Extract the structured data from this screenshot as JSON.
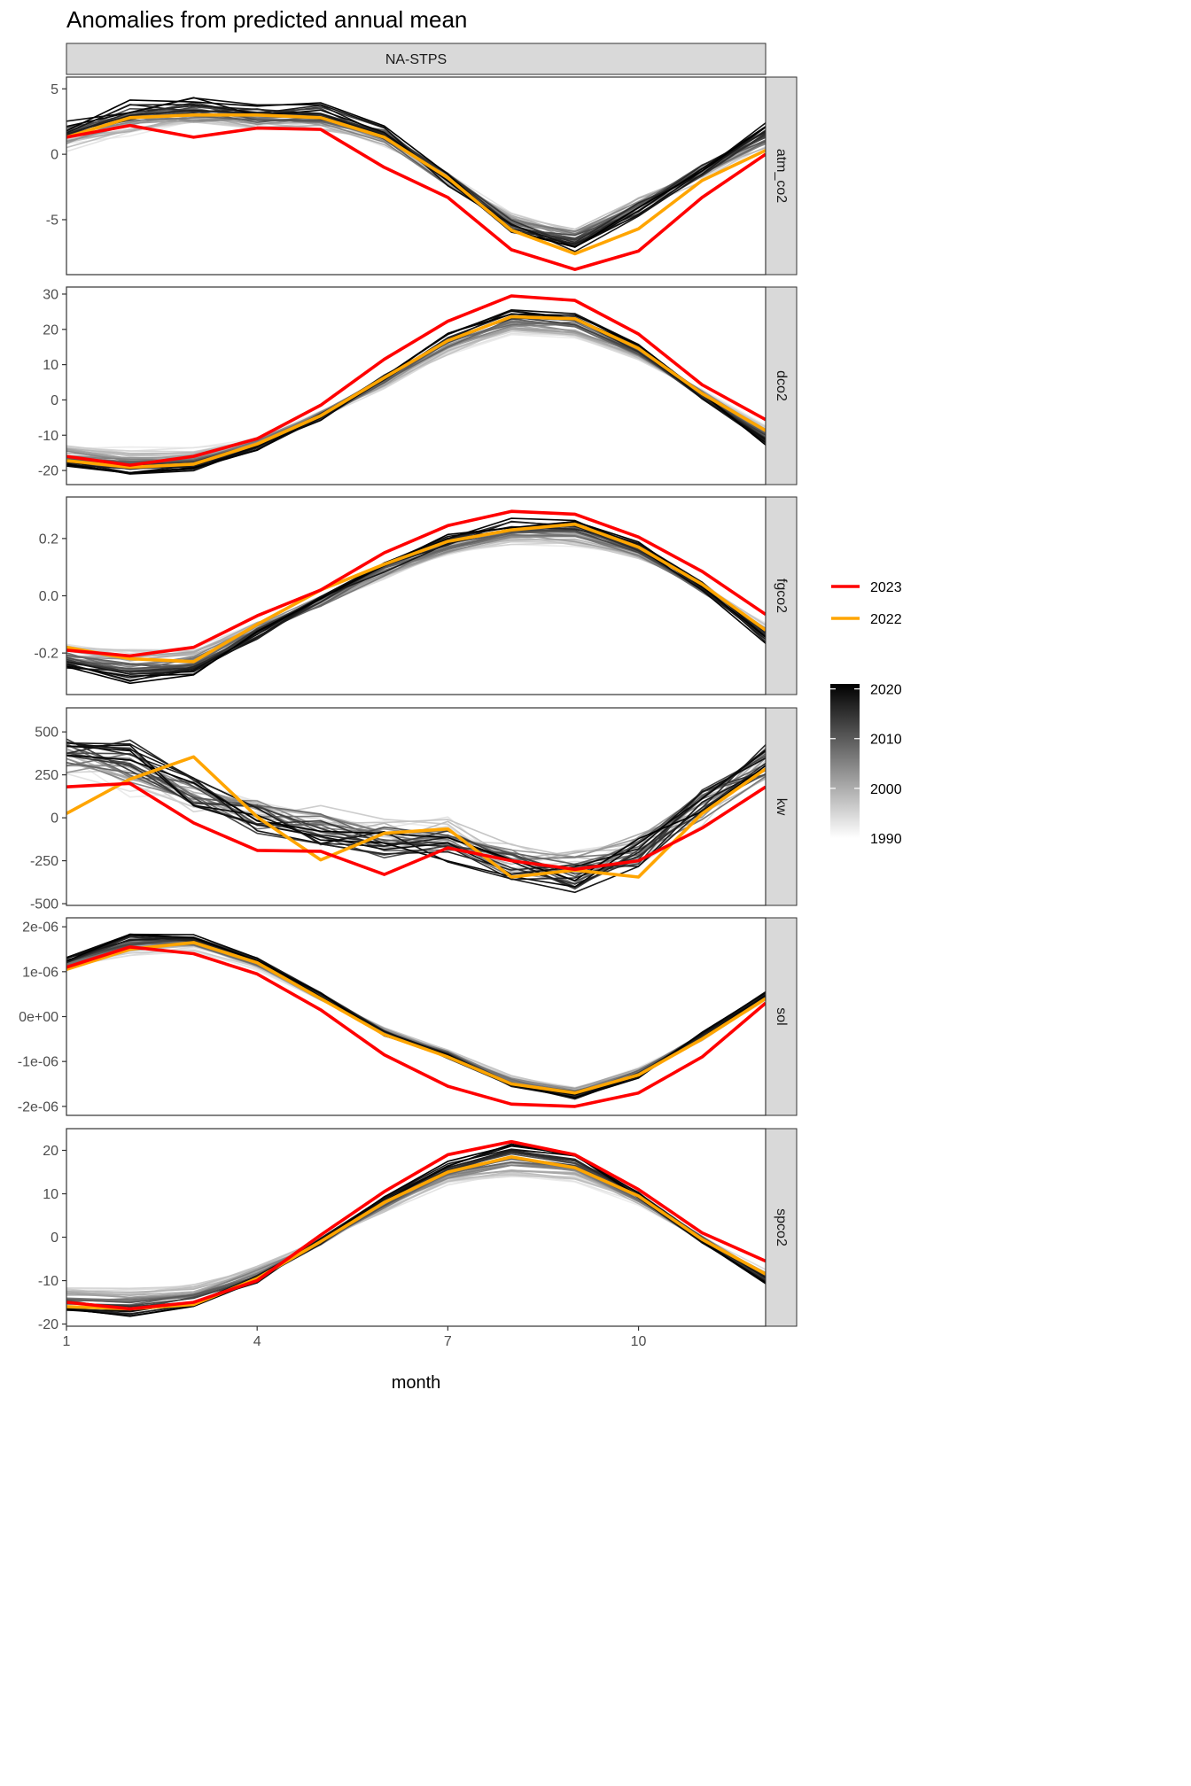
{
  "chart_data": {
    "type": "line",
    "title": "Anomalies from predicted annual mean",
    "strip": "NA-STPS",
    "xlabel": "month",
    "x": [
      1,
      2,
      3,
      4,
      5,
      6,
      7,
      8,
      9,
      10,
      11,
      12
    ],
    "x_ticks": [
      1,
      4,
      7,
      10
    ],
    "x_tick_labels": [
      "1",
      "4",
      "7",
      "10"
    ],
    "xlim": [
      1,
      12
    ],
    "legend": {
      "placement": "right",
      "highlight": [
        {
          "name": "2023",
          "color": "#ff0000"
        },
        {
          "name": "2022",
          "color": "#ffa500"
        }
      ],
      "colorbar": {
        "range": [
          1990,
          2021
        ],
        "ticks": [
          1990,
          2000,
          2010,
          2020
        ],
        "tick_labels": [
          "1990",
          "2000",
          "2010",
          "2020"
        ],
        "low_color": "#ffffff",
        "high_color": "#000000"
      }
    },
    "panels": [
      {
        "label": "atm_co2",
        "ylim": [
          -9.2,
          5.9
        ],
        "yticks": [
          -5,
          0,
          5
        ],
        "ytick_labels": [
          "-5",
          "0",
          "5"
        ],
        "years_range": [
          1990,
          2021
        ],
        "years_base": [
          1.2,
          3.0,
          3.0,
          3.0,
          2.8,
          1.3,
          -1.8,
          -5.3,
          -6.6,
          -4.8,
          -1.8,
          0.9
        ],
        "years_first_offset": [
          -0.6,
          -1.3,
          -0.7,
          -0.8,
          -0.7,
          -0.3,
          0.0,
          0.4,
          0.9,
          1.1,
          0.1,
          -0.2
        ],
        "years_last_offset": [
          1.0,
          0.7,
          1.0,
          0.4,
          0.7,
          0.4,
          -0.2,
          -0.4,
          -0.5,
          0.5,
          0.8,
          1.1
        ],
        "years_noise": 0.5,
        "series": [
          {
            "name": "2023",
            "values": [
              1.3,
              2.2,
              1.3,
              2.0,
              1.9,
              -1.0,
              -3.3,
              -7.3,
              -8.8,
              -7.4,
              -3.3,
              0.0
            ]
          },
          {
            "name": "2022",
            "values": [
              1.3,
              2.8,
              3.0,
              3.0,
              2.8,
              1.3,
              -1.8,
              -5.8,
              -7.6,
              -5.7,
              -2.0,
              0.3
            ]
          }
        ]
      },
      {
        "label": "dco2",
        "ylim": [
          -24,
          32
        ],
        "yticks": [
          -20,
          -10,
          0,
          10,
          20,
          30
        ],
        "ytick_labels": [
          "-20",
          "-10",
          "0",
          "10",
          "20",
          "30"
        ],
        "years_range": [
          1990,
          2021
        ],
        "years_base": [
          -17,
          -19,
          -19,
          -13,
          -5,
          6,
          16,
          23,
          22,
          14,
          1,
          -10
        ],
        "years_first_offset": [
          4,
          5,
          5,
          2,
          1,
          -2,
          -3,
          -4,
          -4,
          -2,
          1,
          2
        ],
        "years_last_offset": [
          -2,
          -2,
          -1,
          -1,
          0,
          1,
          2,
          2,
          2,
          1,
          0,
          -2
        ],
        "years_noise": 1.0,
        "series": [
          {
            "name": "2023",
            "values": [
              -16,
              -18.5,
              -16,
              -11,
              -1.5,
              11.5,
              22.3,
              29.5,
              28.2,
              18.7,
              4.3,
              -5.6
            ]
          },
          {
            "name": "2022",
            "values": [
              -17.2,
              -19.1,
              -18.2,
              -12.5,
              -4.5,
              6.3,
              16.8,
              23.6,
              23.0,
              14.6,
              1.8,
              -8.7
            ]
          }
        ]
      },
      {
        "label": "fgco2",
        "ylim": [
          -0.345,
          0.345
        ],
        "yticks": [
          -0.2,
          0.0,
          0.2
        ],
        "ytick_labels": [
          "-0.2",
          "0.0",
          "0.2"
        ],
        "years_range": [
          1990,
          2021
        ],
        "years_base": [
          -0.22,
          -0.25,
          -0.24,
          -0.12,
          -0.02,
          0.09,
          0.18,
          0.225,
          0.23,
          0.165,
          0.03,
          -0.13
        ],
        "years_first_offset": [
          0.04,
          0.06,
          0.05,
          0.02,
          0.0,
          -0.02,
          -0.03,
          -0.04,
          -0.05,
          -0.03,
          0.0,
          0.02
        ],
        "years_last_offset": [
          -0.03,
          -0.05,
          -0.03,
          -0.02,
          0.0,
          0.01,
          0.02,
          0.03,
          0.03,
          0.01,
          0.0,
          -0.02
        ],
        "years_noise": 0.018,
        "series": [
          {
            "name": "2023",
            "values": [
              -0.19,
              -0.21,
              -0.18,
              -0.07,
              0.02,
              0.15,
              0.245,
              0.295,
              0.285,
              0.205,
              0.085,
              -0.065
            ]
          },
          {
            "name": "2022",
            "values": [
              -0.18,
              -0.22,
              -0.23,
              -0.1,
              0.02,
              0.11,
              0.19,
              0.23,
              0.25,
              0.17,
              0.04,
              -0.12
            ]
          }
        ]
      },
      {
        "label": "kw",
        "ylim": [
          -510,
          640
        ],
        "yticks": [
          -500,
          -250,
          0,
          250,
          500
        ],
        "ytick_labels": [
          "-500",
          "-250",
          "0",
          "250",
          "500"
        ],
        "years_range": [
          1990,
          2021
        ],
        "years_base": [
          300,
          300,
          120,
          -20,
          -80,
          -140,
          -120,
          -250,
          -280,
          -180,
          50,
          300
        ],
        "years_first_offset": [
          0,
          -100,
          0,
          60,
          80,
          60,
          40,
          30,
          20,
          0,
          -20,
          0
        ],
        "years_last_offset": [
          100,
          120,
          40,
          0,
          -40,
          -40,
          -60,
          -60,
          -80,
          -20,
          40,
          60
        ],
        "years_noise": 90,
        "series": [
          {
            "name": "2023",
            "values": [
              180,
              200,
              -30,
              -190,
              -195,
              -330,
              -175,
              -250,
              -300,
              -250,
              -60,
              180
            ]
          },
          {
            "name": "2022",
            "values": [
              25,
              225,
              355,
              5,
              -245,
              -90,
              -65,
              -345,
              -305,
              -345,
              25,
              285
            ]
          }
        ]
      },
      {
        "label": "sol",
        "ylim": [
          -2.2e-06,
          2.2e-06
        ],
        "yticks": [
          -2e-06,
          -1e-06,
          0,
          1e-06,
          2e-06
        ],
        "ytick_labels": [
          "-2e-06",
          "-1e-06",
          "0e+00",
          "1e-06",
          "2e-06"
        ],
        "years_range": [
          1990,
          2021
        ],
        "years_base": [
          1.2e-06,
          1.6e-06,
          1.6e-06,
          1.2e-06,
          4e-07,
          -4e-07,
          -9e-07,
          -1.45e-06,
          -1.7e-06,
          -1.3e-06,
          -5e-07,
          4e-07
        ],
        "years_first_offset": [
          -1e-07,
          -2e-07,
          -1e-07,
          -1e-07,
          0,
          1e-07,
          1e-07,
          1e-07,
          1e-07,
          1e-07,
          0,
          0
        ],
        "years_last_offset": [
          1e-07,
          2e-07,
          2e-07,
          1e-07,
          1e-07,
          0,
          0,
          -1e-07,
          -1e-07,
          0,
          1e-07,
          1e-07
        ],
        "years_noise": 7e-08,
        "series": [
          {
            "name": "2023",
            "values": [
              1.1e-06,
              1.55e-06,
              1.4e-06,
              9.5e-07,
              1.5e-07,
              -8.5e-07,
              -1.55e-06,
              -1.95e-06,
              -2e-06,
              -1.7e-06,
              -9e-07,
              3e-07
            ]
          },
          {
            "name": "2022",
            "values": [
              1.05e-06,
              1.5e-06,
              1.65e-06,
              1.2e-06,
              4e-07,
              -4e-07,
              -9e-07,
              -1.5e-06,
              -1.7e-06,
              -1.3e-06,
              -5e-07,
              4e-07
            ]
          }
        ]
      },
      {
        "label": "spco2",
        "ylim": [
          -20.5,
          25
        ],
        "yticks": [
          -20,
          -10,
          0,
          10,
          20
        ],
        "ytick_labels": [
          "-20",
          "-10",
          "0",
          "10",
          "20"
        ],
        "years_range": [
          1990,
          2021
        ],
        "years_base": [
          -15,
          -16,
          -15,
          -9,
          -1,
          8,
          15,
          18,
          16,
          9,
          -1,
          -9
        ],
        "years_first_offset": [
          3,
          4,
          4,
          2,
          0,
          -2,
          -3,
          -4,
          -3,
          -1,
          1,
          1
        ],
        "years_last_offset": [
          -2,
          -2,
          -1,
          -1,
          0,
          1,
          2,
          3,
          3,
          1,
          0,
          -1
        ],
        "years_noise": 0.8,
        "series": [
          {
            "name": "2023",
            "values": [
              -15,
              -16.5,
              -15,
              -10,
              0.5,
              10.5,
              19,
              22,
              19,
              11,
              1,
              -5.5
            ]
          },
          {
            "name": "2022",
            "values": [
              -16,
              -16.5,
              -15.5,
              -9.5,
              -1,
              8,
              15,
              18.5,
              16,
              9.5,
              -0.5,
              -8.5
            ]
          }
        ]
      }
    ]
  }
}
